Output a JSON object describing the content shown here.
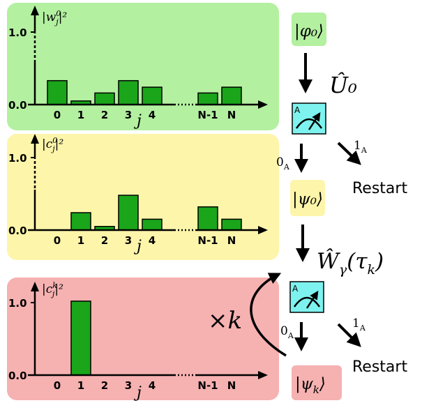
{
  "panels": [
    {
      "id": "w",
      "ylabel": "|w",
      "ylabel_sup": "0",
      "ylabel_sub": "j",
      "ylabel_tail": "|²",
      "fill": "#b3f0a0",
      "ytick_top": "1.0",
      "ytick_bottom": "0.0",
      "xlabels": [
        "0",
        "1",
        "2",
        "3",
        "4",
        "N-1",
        "N"
      ],
      "xvar": "j",
      "values": [
        0.33,
        0.05,
        0.16,
        0.33,
        0.24,
        0.16,
        0.24
      ]
    },
    {
      "id": "c0",
      "ylabel": "|c",
      "ylabel_sup": "0",
      "ylabel_sub": "j",
      "ylabel_tail": "|²",
      "fill": "#fdf5aa",
      "ytick_top": "1.0",
      "ytick_bottom": "0.0",
      "xlabels": [
        "0",
        "1",
        "2",
        "3",
        "4",
        "N-1",
        "N"
      ],
      "xvar": "j",
      "values": [
        0,
        0.24,
        0.05,
        0.48,
        0.15,
        0.32,
        0.15
      ]
    },
    {
      "id": "ck",
      "ylabel": "|c",
      "ylabel_sup": "k",
      "ylabel_sub": "j",
      "ylabel_tail": "|²",
      "fill": "#f6b1b1",
      "ytick_top": "1.0",
      "ytick_bottom": "0.0",
      "xlabels": [
        "0",
        "1",
        "2",
        "3",
        "4",
        "N-1",
        "N"
      ],
      "xvar": "j",
      "values": [
        0,
        1.02,
        0,
        0,
        0,
        0,
        0
      ]
    }
  ],
  "flow": {
    "state_phi0": "|φ₀⟩",
    "op_U0": "Û₀",
    "meter_label": "A",
    "outcome0": "0",
    "outcome1": "1",
    "outcome_sub": "A",
    "restart": "Restart",
    "state_psi0": "|ψ₀⟩",
    "op_W": "Ŵ",
    "op_W_sub": "γ",
    "op_W_arg": "(τ",
    "op_W_arg_sub": "k",
    "op_W_close": ")",
    "times_k": "×k",
    "state_psik": "|ψ",
    "state_psik_sub": "k",
    "state_psik_close": "⟩"
  },
  "colors": {
    "bar": "#1aa51a",
    "meter": "#7ef2ee",
    "phi_box": "#b3f0a0",
    "psi0_box": "#fdf5aa",
    "psik_box": "#f6b1b1"
  }
}
